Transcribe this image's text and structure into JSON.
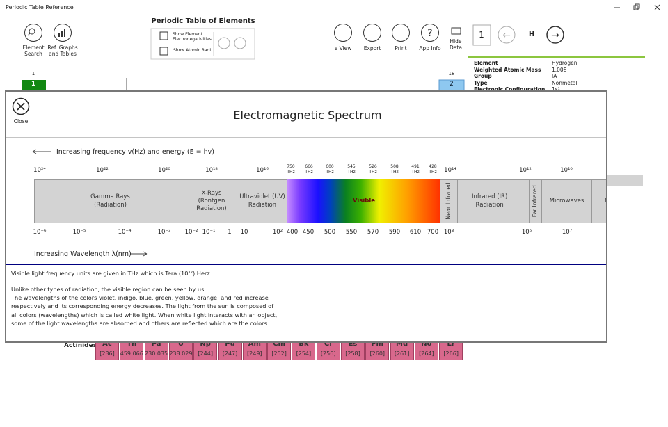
{
  "window": {
    "title": "Periodic Table Reference"
  },
  "toolbar": {
    "element_search": "Element\nSearch",
    "ref_graphs": "Ref. Graphs\nand Tables",
    "panel_title": "Periodic Table of Elements",
    "show_electronegativities": "Show Element\nElectronegativities",
    "show_atomic_radii": "Show Atomic Radi",
    "e_view": "e  View",
    "export": "Export",
    "print": "Print",
    "app_info": "App Info",
    "hide_data": "Hide\nData",
    "element_number": "1",
    "element_symbol": "H"
  },
  "info_panel": {
    "rows": [
      [
        "Element",
        "Hydrogen"
      ],
      [
        "Weighted Atomic Mass",
        "1.008"
      ],
      [
        "Group",
        "IA"
      ],
      [
        "Type",
        "Nonmetal"
      ],
      [
        "Electronic Configuration",
        "1s¹"
      ]
    ]
  },
  "table": {
    "group_labels": [
      "1",
      "18"
    ],
    "visible_cells": [
      "1",
      "2"
    ],
    "actinides": {
      "label": "Actinides",
      "elements": [
        {
          "symbol": "Ac",
          "mass": "[236]"
        },
        {
          "symbol": "Th",
          "mass": "459.066"
        },
        {
          "symbol": "Pa",
          "mass": "230.035"
        },
        {
          "symbol": "U",
          "mass": "238.029"
        },
        {
          "symbol": "Np",
          "mass": "[244]"
        },
        {
          "symbol": "Pu",
          "mass": "[247]"
        },
        {
          "symbol": "Am",
          "mass": "[249]"
        },
        {
          "symbol": "Cm",
          "mass": "[252]"
        },
        {
          "symbol": "Bk",
          "mass": "[254]"
        },
        {
          "symbol": "Cf",
          "mass": "[256]"
        },
        {
          "symbol": "Es",
          "mass": "[258]"
        },
        {
          "symbol": "Fm",
          "mass": "[260]"
        },
        {
          "symbol": "Md",
          "mass": "[261]"
        },
        {
          "symbol": "No",
          "mass": "[264]"
        },
        {
          "symbol": "Lr",
          "mass": "[266]"
        }
      ]
    }
  },
  "dialog": {
    "close": "Close",
    "title": "Electromagnetic Spectrum",
    "frequency_caption": "Increasing frequency v(Hz) and energy (E = hv)",
    "frequency_labels": [
      "10²⁴",
      "10²²",
      "10²⁰",
      "10¹⁸",
      "10¹⁶",
      "750\nTHz",
      "666\nTHz",
      "600\nTHz",
      "545\nTHz",
      "526\nTHz",
      "508\nTHz",
      "491\nTHz",
      "428\nTHz",
      "10¹⁴",
      "10¹²",
      "10¹⁰"
    ],
    "bands": [
      "Gamma Rays\n(Radiation)",
      "X-Rays\n(Röntgen\nRadiation)",
      "Ultraviolet (UV)\nRadiation",
      "Visible",
      "Near Infrared",
      "Infrared (IR)\nRadiation",
      "Far Infrared",
      "Microwaves",
      "F"
    ],
    "wavelength_labels": [
      "10⁻⁶",
      "10⁻⁵",
      "10⁻⁴",
      "10⁻³",
      "10⁻²",
      "10⁻¹",
      "1",
      "10",
      "10²",
      "400",
      "450",
      "500",
      "550",
      "570",
      "590",
      "610",
      "700",
      "10³",
      "10⁵",
      "10⁷"
    ],
    "wavelength_caption": "Increasing Wavelength λ(nm)",
    "notes": [
      "Visible light frequency units are given in THz which is Tera (10¹²) Herz.",
      "Unlike other types of radiation, the visible region can be seen by us.",
      "The wavelengths of the colors violet, indigo, blue, green, yellow, orange, and red increase",
      "respectively and its corresponding energy decreases. The light from the sun is composed of",
      "all colors (wavelengths) which is called white light. When white light interacts with an object,",
      "some of the light wavelengths are absorbed and others are reflected which are the colors"
    ]
  }
}
